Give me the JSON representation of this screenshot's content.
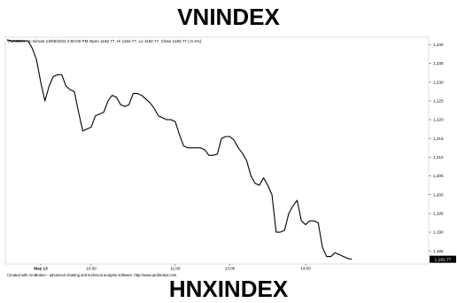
{
  "page": {
    "top_title": "VNINDEX",
    "bottom_title": "HNXINDEX"
  },
  "chart_data": {
    "type": "line",
    "header": "VNINDEX - 1-minute 13/05/2022 2:50:00 PM Open 1182.77, Hi 1182.77, Lo 1182.77, Close 1182.77 (-0.1%)",
    "footer": "Created with AmiBroker - advanced charting and technical analysis software. http://www.amibroker.com",
    "last_value_label": "1,182.77",
    "ylim": [
      1181.5,
      1242.0
    ],
    "y_ticks": [
      1185,
      1190,
      1195,
      1200,
      1205,
      1210,
      1215,
      1220,
      1225,
      1230,
      1235,
      1240
    ],
    "y_tick_labels": [
      "1,185",
      "1,190",
      "1,195",
      "1,200",
      "1,205",
      "1,210",
      "1,215",
      "1,220",
      "1,225",
      "1,230",
      "1,235",
      "1,240"
    ],
    "x_ticks": [
      {
        "label": "May 13",
        "x": 8.0,
        "bold": true
      },
      {
        "label": "10:00",
        "x": 20.0,
        "bold": false
      },
      {
        "label": "11:00",
        "x": 40.0,
        "bold": false
      },
      {
        "label": "13:00",
        "x": 53.0,
        "bold": false
      },
      {
        "label": "14:00",
        "x": 71.0,
        "bold": false
      }
    ],
    "xlim": [
      0,
      83
    ],
    "series": [
      {
        "color": "#000000",
        "x": [
          0,
          1,
          2,
          3,
          4,
          5,
          6,
          7,
          8,
          9,
          10,
          11,
          12,
          13,
          14,
          15,
          16,
          17,
          18,
          19,
          20,
          21,
          22,
          23,
          24,
          25,
          26,
          27,
          28,
          29,
          30,
          31,
          32,
          33,
          34,
          35,
          36,
          37,
          38,
          39,
          40,
          41,
          42,
          43,
          44,
          45,
          46,
          47,
          48,
          49,
          50,
          51,
          52,
          53,
          54,
          55,
          56,
          57,
          58,
          59,
          60,
          61,
          62,
          63,
          64,
          65,
          66,
          67,
          68,
          69,
          70,
          71,
          72,
          73,
          74,
          75,
          76,
          77,
          78,
          79,
          80,
          81,
          82
        ],
        "y": [
          1241.3,
          1241.0,
          1241.0,
          1241.0,
          1241.0,
          1241.0,
          1239.0,
          1236.0,
          1230.0,
          1225.0,
          1229.0,
          1231.5,
          1232.0,
          1232.0,
          1229.0,
          1228.0,
          1227.5,
          1222.0,
          1217.0,
          1217.5,
          1218.0,
          1221.0,
          1221.5,
          1222.0,
          1225.0,
          1226.5,
          1226.0,
          1224.0,
          1223.5,
          1224.0,
          1227.0,
          1227.0,
          1226.5,
          1225.5,
          1224.5,
          1223.0,
          1221.0,
          1220.5,
          1220.0,
          1220.0,
          1219.5,
          1216.0,
          1213.0,
          1212.5,
          1212.5,
          1212.5,
          1212.5,
          1212.0,
          1210.5,
          1210.5,
          1210.8,
          1215.0,
          1215.5,
          1215.5,
          1214.5,
          1212.5,
          1211.0,
          1209.0,
          1205.0,
          1203.0,
          1202.5,
          1204.5,
          1202.5,
          1200.0,
          1190.0,
          1190.0,
          1190.5,
          1195.0,
          1197.0,
          1198.5,
          1193.0,
          1192.0,
          1193.0,
          1193.0,
          1192.5,
          1186.0,
          1183.5,
          1183.5,
          1184.5,
          1184.0,
          1183.5,
          1183.0,
          1182.77
        ]
      }
    ]
  }
}
